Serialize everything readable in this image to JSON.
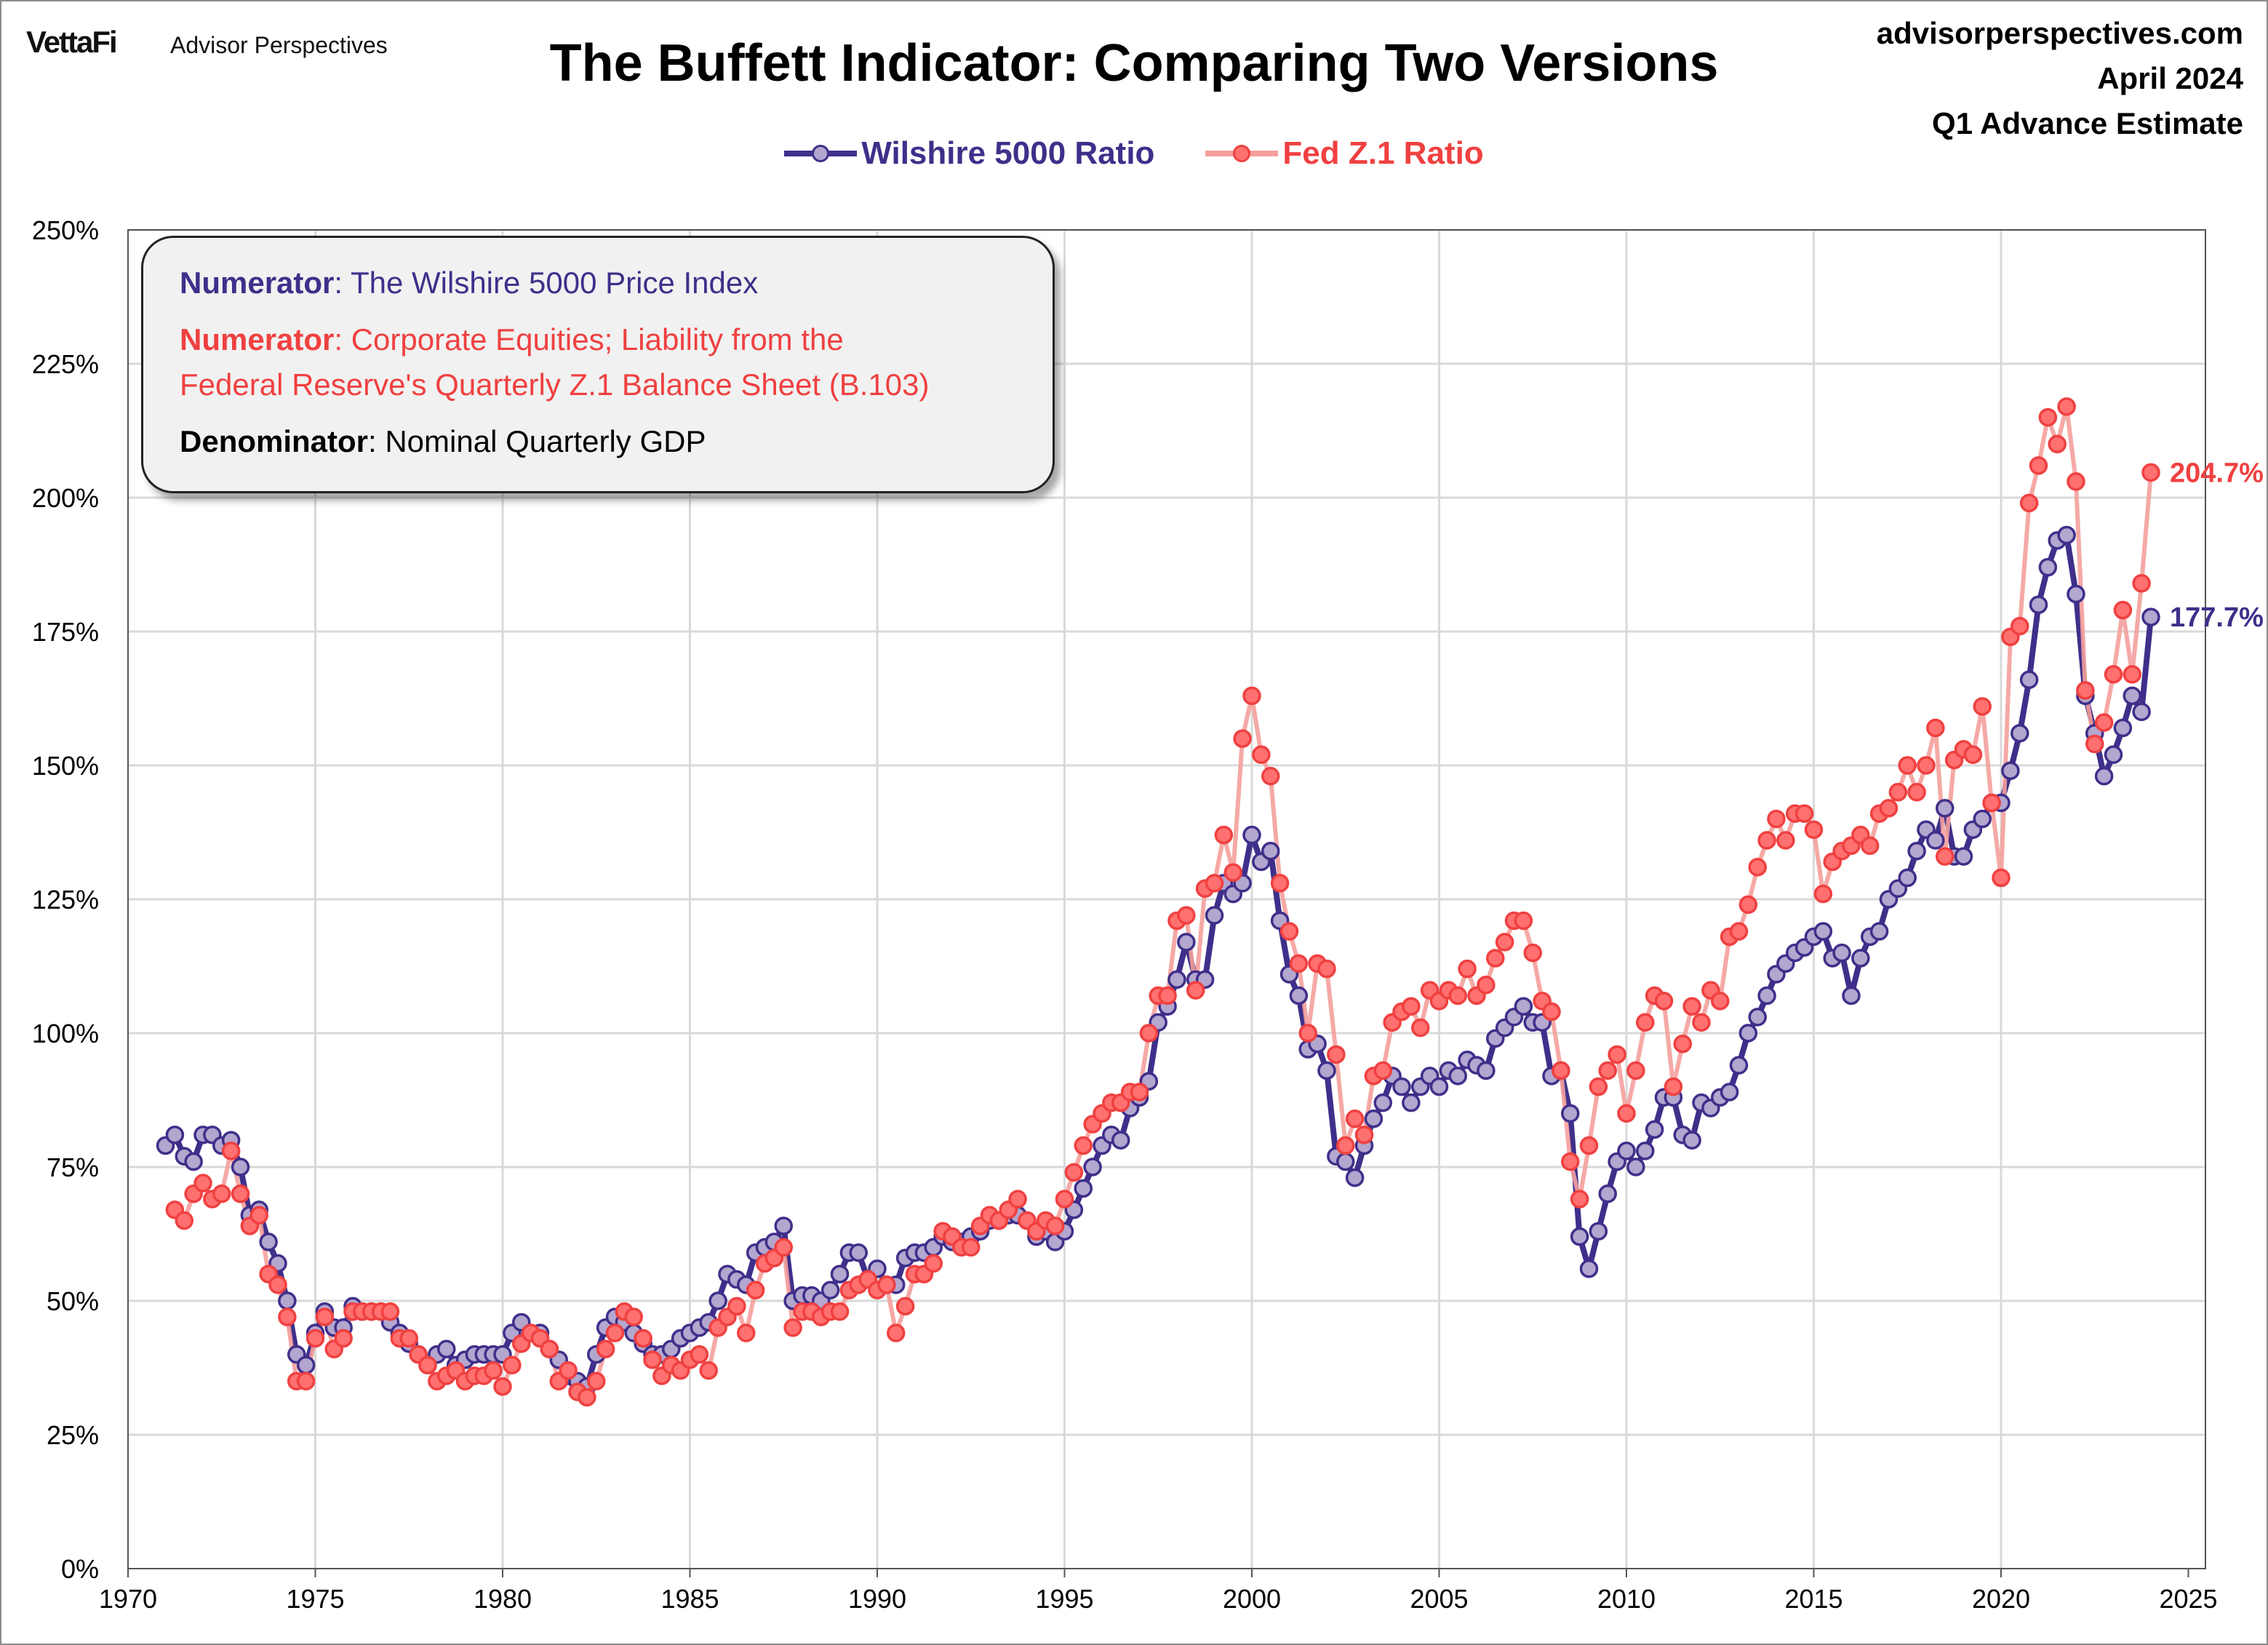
{
  "header": {
    "brand": "VettaFi",
    "brand_sub": "Advisor Perspectives",
    "title": "The Buffett Indicator: Comparing Two Versions",
    "site": "advisorperspectives.com",
    "date": "April 2024",
    "estimate": "Q1 Advance Estimate"
  },
  "annotation": {
    "line1_label": "Numerator",
    "line1_text": ": The Wilshire 5000 Price Index",
    "line2_label": "Numerator",
    "line2_text": ": Corporate Equities; Liability from the",
    "line3_text": "Federal Reserve's Quarterly Z.1 Balance Sheet (B.103)",
    "line4_label": "Denominator",
    "line4_text": ": Nominal Quarterly GDP"
  },
  "colors": {
    "wilshire_line": "#3f2f8a",
    "wilshire_marker": "#b3a6cf",
    "fed_line": "#f4a09c",
    "fed_marker": "#ff7070",
    "fed_text": "#f04040",
    "grid": "#d9d9d9"
  },
  "chart_data": {
    "type": "line",
    "frequency": "quarterly",
    "x_ticks": [
      "1970",
      "1975",
      "1980",
      "1985",
      "1990",
      "1995",
      "2000",
      "2005",
      "2010",
      "2015",
      "2020",
      "2025"
    ],
    "y_ticks": [
      "0%",
      "25%",
      "50%",
      "75%",
      "100%",
      "125%",
      "150%",
      "175%",
      "200%",
      "225%",
      "250%"
    ],
    "xlim": [
      1970,
      2025
    ],
    "ylim": [
      0,
      250
    ],
    "grid": true,
    "legend": "top-center",
    "series": [
      {
        "name": "Wilshire 5000 Ratio",
        "end_label": "177.7%",
        "values_by_year": {
          "1971": [
            79,
            81,
            77,
            76
          ],
          "1972": [
            81,
            81,
            79,
            80
          ],
          "1973": [
            75,
            66,
            67,
            61
          ],
          "1974": [
            57,
            50,
            40,
            38
          ],
          "1975": [
            44,
            48,
            45,
            45
          ],
          "1976": [
            49,
            48,
            48,
            48
          ],
          "1977": [
            46,
            44,
            42,
            40
          ],
          "1978": [
            38,
            40,
            41,
            38
          ],
          "1979": [
            39,
            40,
            40,
            40
          ],
          "1980": [
            40,
            44,
            46,
            44
          ],
          "1981": [
            44,
            41,
            39,
            36
          ],
          "1982": [
            35,
            34,
            40,
            45
          ],
          "1983": [
            47,
            46,
            44,
            42
          ],
          "1984": [
            40,
            40,
            41,
            43
          ],
          "1985": [
            44,
            45,
            46,
            50
          ],
          "1986": [
            55,
            54,
            53,
            59
          ],
          "1987": [
            60,
            61,
            64,
            50
          ],
          "1988": [
            51,
            51,
            50,
            52
          ],
          "1989": [
            55,
            59,
            59,
            54
          ],
          "1990": [
            56,
            53,
            53,
            58
          ],
          "1991": [
            59,
            59,
            60,
            62
          ],
          "1992": [
            61,
            61,
            62,
            63
          ],
          "1993": [
            65,
            65,
            66,
            66
          ],
          "1994": [
            65,
            62,
            63,
            61
          ],
          "1995": [
            63,
            67,
            71,
            75
          ],
          "1996": [
            79,
            81,
            80,
            86
          ],
          "1997": [
            88,
            91,
            102,
            105
          ],
          "1998": [
            110,
            117,
            110,
            110
          ],
          "1999": [
            122,
            128,
            126,
            128
          ],
          "2000": [
            137,
            132,
            134,
            121
          ],
          "2001": [
            111,
            107,
            97,
            98
          ],
          "2002": [
            93,
            77,
            76,
            73
          ],
          "2003": [
            79,
            84,
            87,
            92
          ],
          "2004": [
            90,
            87,
            90,
            92
          ],
          "2005": [
            90,
            93,
            92,
            95
          ],
          "2006": [
            94,
            93,
            99,
            101
          ],
          "2007": [
            103,
            105,
            102,
            102
          ],
          "2008": [
            92,
            93,
            85,
            62
          ],
          "2009": [
            56,
            63,
            70,
            76
          ],
          "2010": [
            78,
            75,
            78,
            82
          ],
          "2011": [
            88,
            88,
            81,
            80
          ],
          "2012": [
            87,
            86,
            88,
            89
          ],
          "2013": [
            94,
            100,
            103,
            107
          ],
          "2014": [
            111,
            113,
            115,
            116
          ],
          "2015": [
            118,
            119,
            114,
            115
          ],
          "2016": [
            107,
            114,
            118,
            119
          ],
          "2017": [
            125,
            127,
            129,
            134
          ],
          "2018": [
            138,
            136,
            142,
            133
          ],
          "2019": [
            133,
            138,
            140,
            143
          ],
          "2020": [
            143,
            149,
            156,
            166
          ],
          "2021": [
            180,
            187,
            192,
            193
          ],
          "2022": [
            182,
            163,
            156,
            148
          ],
          "2023": [
            152,
            157,
            163,
            160
          ],
          "2024": [
            177.7
          ]
        }
      },
      {
        "name": "Fed Z.1 Ratio",
        "end_label": "204.7%",
        "values_by_year": {
          "1971": [
            null,
            67,
            65,
            70
          ],
          "1972": [
            72,
            69,
            70,
            78
          ],
          "1973": [
            70,
            64,
            66,
            55
          ],
          "1974": [
            53,
            47,
            35,
            35
          ],
          "1975": [
            43,
            47,
            41,
            43
          ],
          "1976": [
            48,
            48,
            48,
            48
          ],
          "1977": [
            48,
            43,
            43,
            40
          ],
          "1978": [
            38,
            35,
            36,
            37
          ],
          "1979": [
            35,
            36,
            36,
            37
          ],
          "1980": [
            34,
            38,
            42,
            44
          ],
          "1981": [
            43,
            41,
            35,
            37
          ],
          "1982": [
            33,
            32,
            35,
            41
          ],
          "1983": [
            44,
            48,
            47,
            43
          ],
          "1984": [
            39,
            36,
            38,
            37
          ],
          "1985": [
            39,
            40,
            37,
            45
          ],
          "1986": [
            47,
            49,
            44,
            52
          ],
          "1987": [
            57,
            58,
            60,
            45
          ],
          "1988": [
            48,
            48,
            47,
            48
          ],
          "1989": [
            48,
            52,
            53,
            54
          ],
          "1990": [
            52,
            53,
            44,
            49
          ],
          "1991": [
            55,
            55,
            57,
            63
          ],
          "1992": [
            62,
            60,
            60,
            64
          ],
          "1993": [
            66,
            65,
            67,
            69
          ],
          "1994": [
            65,
            63,
            65,
            64
          ],
          "1995": [
            69,
            74,
            79,
            83
          ],
          "1996": [
            85,
            87,
            87,
            89
          ],
          "1997": [
            89,
            100,
            107,
            107
          ],
          "1998": [
            121,
            122,
            108,
            127
          ],
          "1999": [
            128,
            137,
            130,
            155
          ],
          "2000": [
            163,
            152,
            148,
            128
          ],
          "2001": [
            119,
            113,
            100,
            113
          ],
          "2002": [
            112,
            96,
            79,
            84
          ],
          "2003": [
            81,
            92,
            93,
            102
          ],
          "2004": [
            104,
            105,
            101,
            108
          ],
          "2005": [
            106,
            108,
            107,
            112
          ],
          "2006": [
            107,
            109,
            114,
            117
          ],
          "2007": [
            121,
            121,
            115,
            106
          ],
          "2008": [
            104,
            93,
            76,
            69
          ],
          "2009": [
            79,
            90,
            93,
            96
          ],
          "2010": [
            85,
            93,
            102,
            107
          ],
          "2011": [
            106,
            90,
            98,
            105
          ],
          "2012": [
            102,
            108,
            106,
            118
          ],
          "2013": [
            119,
            124,
            131,
            136
          ],
          "2014": [
            140,
            136,
            141,
            141
          ],
          "2015": [
            138,
            126,
            132,
            134
          ],
          "2016": [
            135,
            137,
            135,
            141
          ],
          "2017": [
            142,
            145,
            150,
            145
          ],
          "2018": [
            150,
            157,
            133,
            151
          ],
          "2019": [
            153,
            152,
            161,
            143
          ],
          "2020": [
            129,
            174,
            176,
            199
          ],
          "2021": [
            206,
            215,
            210,
            217
          ],
          "2022": [
            203,
            164,
            154,
            158
          ],
          "2023": [
            167,
            179,
            167,
            184
          ],
          "2024": [
            204.7
          ]
        }
      }
    ]
  }
}
